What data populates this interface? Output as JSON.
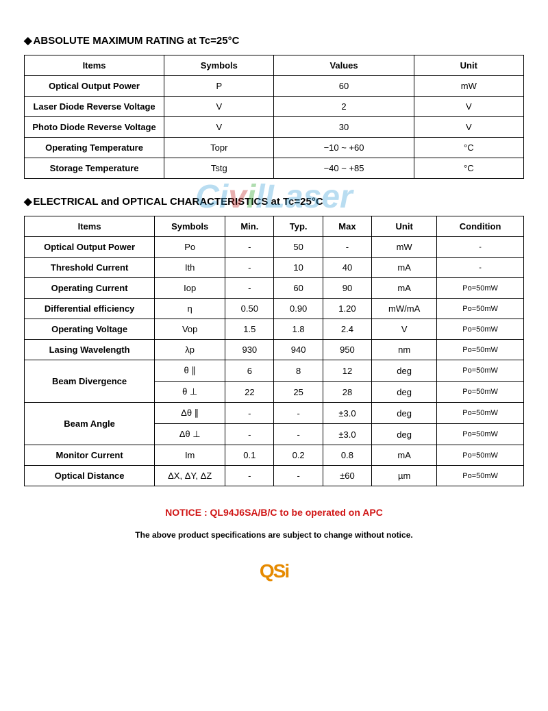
{
  "section1": {
    "title": "ABSOLUTE MAXIMUM RATING at Tc=25°C",
    "headers": [
      "Items",
      "Symbols",
      "Values",
      "Unit"
    ],
    "rows": [
      {
        "item": "Optical Output Power",
        "symbol": "P",
        "value": "60",
        "unit": "mW"
      },
      {
        "item": "Laser Diode Reverse Voltage",
        "symbol": "V",
        "value": "2",
        "unit": "V"
      },
      {
        "item": "Photo Diode Reverse Voltage",
        "symbol": "V",
        "value": "30",
        "unit": "V"
      },
      {
        "item": "Operating Temperature",
        "symbol": "Topr",
        "value": "−10 ~ +60",
        "unit": "°C"
      },
      {
        "item": "Storage Temperature",
        "symbol": "Tstg",
        "value": "−40 ~ +85",
        "unit": "°C"
      }
    ]
  },
  "section2": {
    "title": "ELECTRICAL and OPTICAL CHARACTERISTICS at Tc=25°C",
    "headers": [
      "Items",
      "Symbols",
      "Min.",
      "Typ.",
      "Max",
      "Unit",
      "Condition"
    ],
    "rows": [
      {
        "item": "Optical Output Power",
        "symbol": "Po",
        "min": "-",
        "typ": "50",
        "max": "-",
        "unit": "mW",
        "cond": "-"
      },
      {
        "item": "Threshold Current",
        "symbol": "Ith",
        "min": "-",
        "typ": "10",
        "max": "40",
        "unit": "mA",
        "cond": "-"
      },
      {
        "item": "Operating Current",
        "symbol": "Iop",
        "min": "-",
        "typ": "60",
        "max": "90",
        "unit": "mA",
        "cond": "Po=50mW"
      },
      {
        "item": "Differential efficiency",
        "symbol": "η",
        "min": "0.50",
        "typ": "0.90",
        "max": "1.20",
        "unit": "mW/mA",
        "cond": "Po=50mW"
      },
      {
        "item": "Operating Voltage",
        "symbol": "Vop",
        "min": "1.5",
        "typ": "1.8",
        "max": "2.4",
        "unit": "V",
        "cond": "Po=50mW"
      },
      {
        "item": "Lasing Wavelength",
        "symbol": "λp",
        "min": "930",
        "typ": "940",
        "max": "950",
        "unit": "nm",
        "cond": "Po=50mW"
      },
      {
        "item": "Beam Divergence",
        "rowspan": 2,
        "symbol": "θ ∥",
        "min": "6",
        "typ": "8",
        "max": "12",
        "unit": "deg",
        "cond": "Po=50mW"
      },
      {
        "symbol": "θ ⊥",
        "min": "22",
        "typ": "25",
        "max": "28",
        "unit": "deg",
        "cond": "Po=50mW"
      },
      {
        "item": "Beam Angle",
        "rowspan": 2,
        "symbol": "Δθ ∥",
        "min": "-",
        "typ": "-",
        "max": "±3.0",
        "unit": "deg",
        "cond": "Po=50mW"
      },
      {
        "symbol": "Δθ ⊥",
        "min": "-",
        "typ": "-",
        "max": "±3.0",
        "unit": "deg",
        "cond": "Po=50mW"
      },
      {
        "item": "Monitor Current",
        "symbol": "Im",
        "min": "0.1",
        "typ": "0.2",
        "max": "0.8",
        "unit": "mA",
        "cond": "Po=50mW"
      },
      {
        "item": "Optical Distance",
        "symbol": "ΔX, ΔY, ΔZ",
        "min": "-",
        "typ": "-",
        "max": "±60",
        "unit": "µm",
        "cond": "Po=50mW"
      }
    ]
  },
  "notice": "NOTICE : QL94J6SA/B/C to be operated on APC",
  "footnote": "The above product specifications are subject to change without notice.",
  "watermark": {
    "part1": "Ci",
    "part2": "v",
    "part3": "i",
    "part4": "lLaser"
  },
  "logo": "QSi"
}
